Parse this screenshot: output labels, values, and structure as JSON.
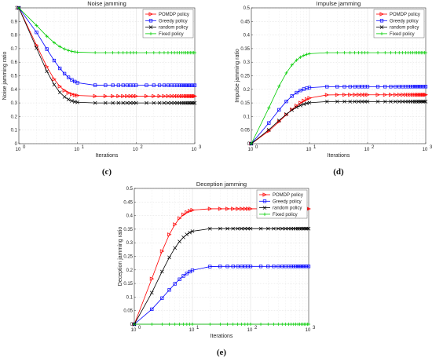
{
  "chart_data": [
    {
      "type": "line",
      "panel_label": "(c)",
      "title": "Noise jamming",
      "xlabel": "Iterations",
      "ylabel": "Noise jamming ratio",
      "xscale": "log",
      "xlim": [
        1,
        1000
      ],
      "ylim": [
        0,
        1
      ],
      "yticks": [
        "0",
        "0.1",
        "0.2",
        "0.3",
        "0.4",
        "0.5",
        "0.6",
        "0.7",
        "0.8",
        "0.9",
        "1"
      ],
      "xticks": [
        {
          "base": "10",
          "exp": "0"
        },
        {
          "base": "10",
          "exp": "1"
        },
        {
          "base": "10",
          "exp": "2"
        },
        {
          "base": "10",
          "exp": "3"
        }
      ],
      "grid": true,
      "legend_position": "top-right",
      "series": [
        {
          "name": "POMDP policy",
          "color": "#ff0000",
          "marker": "triangle-right",
          "start": 1.0,
          "end": 0.35,
          "rate": 0.55
        },
        {
          "name": "Greedy policy",
          "color": "#0000ff",
          "marker": "square",
          "start": 1.0,
          "end": 0.43,
          "rate": 0.38
        },
        {
          "name": "random policy",
          "color": "#000000",
          "marker": "x",
          "start": 1.0,
          "end": 0.3,
          "rate": 0.55
        },
        {
          "name": "Fixed policy",
          "color": "#00cc00",
          "marker": "plus",
          "start": 1.0,
          "end": 0.67,
          "rate": 0.5
        }
      ]
    },
    {
      "type": "line",
      "panel_label": "(d)",
      "title": "Impulse jamming",
      "xlabel": "Iterations",
      "ylabel": "Impulse jamming ratio",
      "xscale": "log",
      "xlim": [
        1,
        1000
      ],
      "ylim": [
        0,
        0.5
      ],
      "yticks": [
        "0",
        "0.05",
        "0.1",
        "0.15",
        "0.2",
        "0.25",
        "0.3",
        "0.35",
        "0.4",
        "0.45",
        "0.5"
      ],
      "xticks": [
        {
          "base": "10",
          "exp": "0"
        },
        {
          "base": "10",
          "exp": "1"
        },
        {
          "base": "10",
          "exp": "2"
        },
        {
          "base": "10",
          "exp": "3"
        }
      ],
      "grid": true,
      "legend_position": "top-right",
      "series": [
        {
          "name": "POMDP policy",
          "color": "#ff0000",
          "marker": "triangle-right",
          "start": 0.0,
          "end": 0.18,
          "rate": 0.3
        },
        {
          "name": "Greedy policy",
          "color": "#0000ff",
          "marker": "square",
          "start": 0.0,
          "end": 0.21,
          "rate": 0.45
        },
        {
          "name": "random policy",
          "color": "#000000",
          "marker": "x",
          "start": 0.0,
          "end": 0.155,
          "rate": 0.4
        },
        {
          "name": "Fixed policy",
          "color": "#00cc00",
          "marker": "plus",
          "start": 0.0,
          "end": 0.335,
          "rate": 0.5
        }
      ]
    },
    {
      "type": "line",
      "panel_label": "(e)",
      "title": "Deception jamming",
      "xlabel": "Iterations",
      "ylabel": "Deception jamming ratio",
      "xscale": "log",
      "xlim": [
        1,
        1000
      ],
      "ylim": [
        0,
        0.5
      ],
      "yticks": [
        "0",
        "0.05",
        "0.1",
        "0.15",
        "0.2",
        "0.25",
        "0.3",
        "0.35",
        "0.4",
        "0.45",
        "0.5"
      ],
      "xticks": [
        {
          "base": "10",
          "exp": "0"
        },
        {
          "base": "10",
          "exp": "1"
        },
        {
          "base": "10",
          "exp": "2"
        },
        {
          "base": "10",
          "exp": "3"
        }
      ],
      "grid": true,
      "legend_position": "top-right",
      "series": [
        {
          "name": "POMDP policy",
          "color": "#ff0000",
          "marker": "triangle-right",
          "start": 0.0,
          "end": 0.425,
          "rate": 0.5
        },
        {
          "name": "Greedy policy",
          "color": "#0000ff",
          "marker": "square",
          "start": 0.0,
          "end": 0.213,
          "rate": 0.3
        },
        {
          "name": "random policy",
          "color": "#000000",
          "marker": "x",
          "start": 0.0,
          "end": 0.352,
          "rate": 0.4
        },
        {
          "name": "Fixed policy",
          "color": "#00cc00",
          "marker": "plus",
          "start": 0.0,
          "end": 0.0,
          "rate": 0.5
        }
      ]
    }
  ]
}
